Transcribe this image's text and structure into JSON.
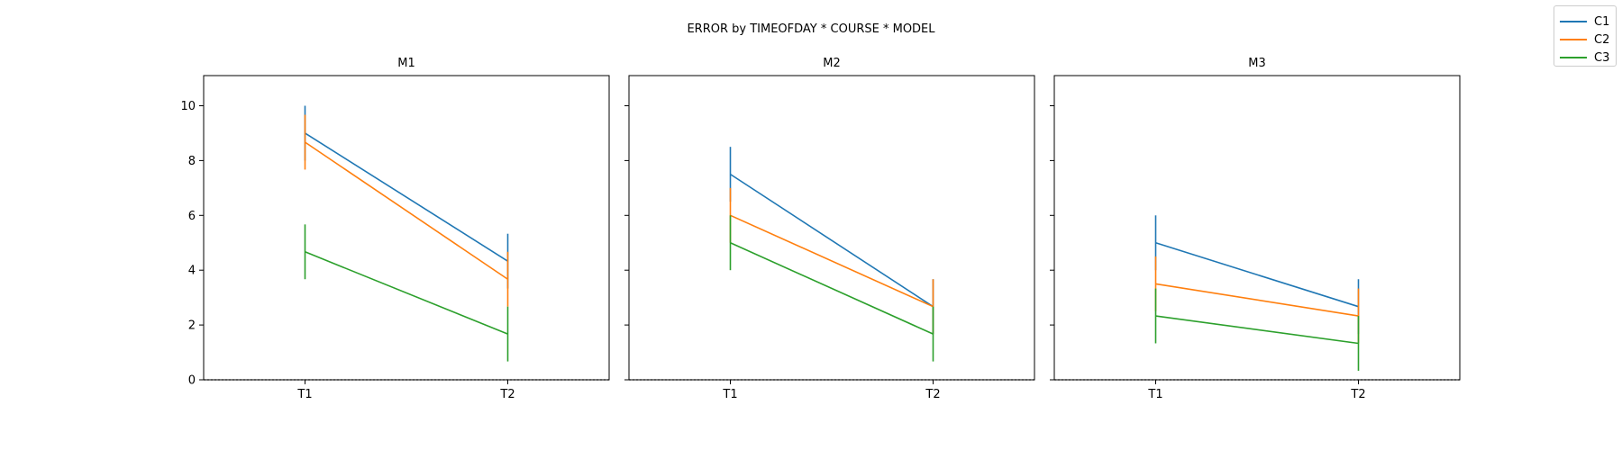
{
  "chart_data": {
    "type": "line",
    "title": "ERROR by TIMEOFDAY * COURSE * MODEL",
    "categories": [
      "T1",
      "T2"
    ],
    "ylim": [
      0,
      11.1
    ],
    "yticks": [
      "0",
      "2",
      "4",
      "6",
      "8",
      "10"
    ],
    "legend_position": "top-right",
    "legend": [
      "C1",
      "C2",
      "C3"
    ],
    "colors": {
      "C1": "#1f77b4",
      "C2": "#ff7f0e",
      "C3": "#2ca02c"
    },
    "panels": [
      {
        "title": "M1",
        "series": [
          {
            "name": "C1",
            "values": [
              9.0,
              4.33
            ],
            "err": [
              1.0,
              1.0
            ]
          },
          {
            "name": "C2",
            "values": [
              8.67,
              3.67
            ],
            "err": [
              1.0,
              1.0
            ]
          },
          {
            "name": "C3",
            "values": [
              4.67,
              1.67
            ],
            "err": [
              1.0,
              1.0
            ]
          }
        ]
      },
      {
        "title": "M2",
        "series": [
          {
            "name": "C1",
            "values": [
              7.5,
              2.67
            ],
            "err": [
              1.0,
              1.0
            ]
          },
          {
            "name": "C2",
            "values": [
              6.0,
              2.67
            ],
            "err": [
              1.0,
              1.0
            ]
          },
          {
            "name": "C3",
            "values": [
              5.0,
              1.67
            ],
            "err": [
              1.0,
              1.0
            ]
          }
        ]
      },
      {
        "title": "M3",
        "series": [
          {
            "name": "C1",
            "values": [
              5.0,
              2.67
            ],
            "err": [
              1.0,
              1.0
            ]
          },
          {
            "name": "C2",
            "values": [
              3.5,
              2.33
            ],
            "err": [
              1.0,
              1.0
            ]
          },
          {
            "name": "C3",
            "values": [
              2.33,
              1.33
            ],
            "err": [
              1.0,
              1.0
            ]
          }
        ]
      }
    ]
  }
}
